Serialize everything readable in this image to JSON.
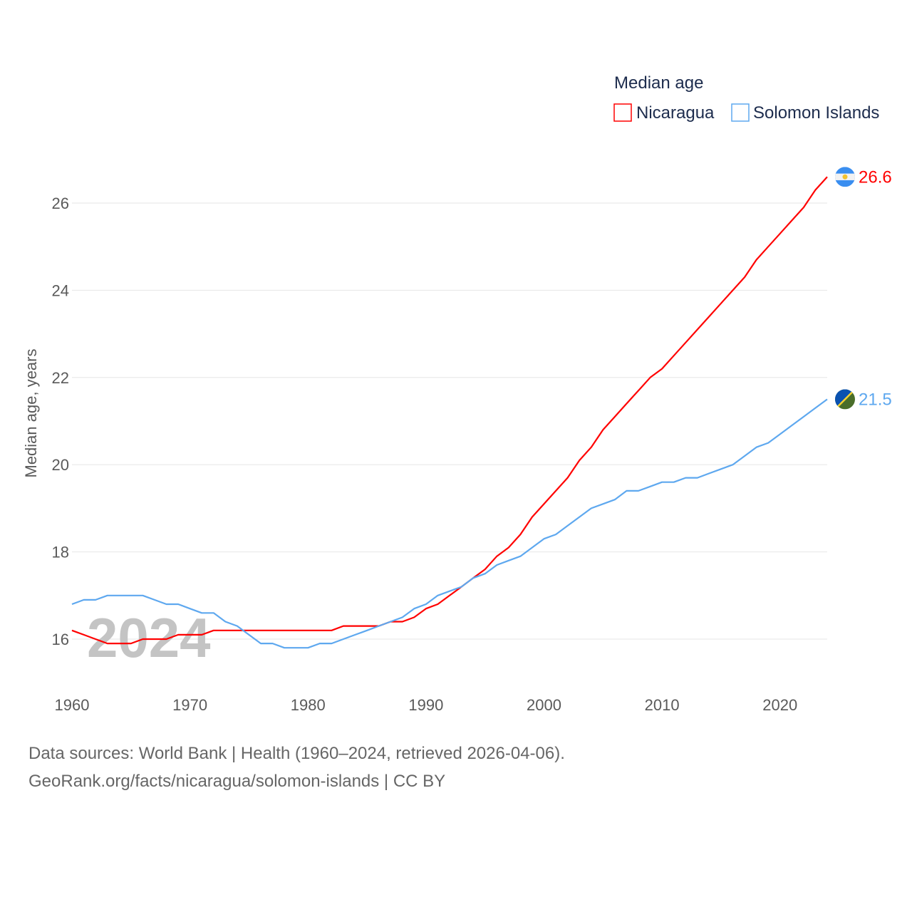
{
  "chart_data": {
    "type": "line",
    "title": "",
    "xlabel": "",
    "ylabel": "Median age, years",
    "xlim": [
      1960,
      2024
    ],
    "ylim": [
      15,
      26.8
    ],
    "yticks": [
      16,
      18,
      20,
      22,
      24,
      26
    ],
    "xticks": [
      1960,
      1970,
      1980,
      1990,
      2000,
      2010,
      2020
    ],
    "grid": true,
    "legend_title": "Median age",
    "legend_position": "top-right",
    "watermark_year": "2024",
    "x": [
      1960,
      1961,
      1962,
      1963,
      1964,
      1965,
      1966,
      1967,
      1968,
      1969,
      1970,
      1971,
      1972,
      1973,
      1974,
      1975,
      1976,
      1977,
      1978,
      1979,
      1980,
      1981,
      1982,
      1983,
      1984,
      1985,
      1986,
      1987,
      1988,
      1989,
      1990,
      1991,
      1992,
      1993,
      1994,
      1995,
      1996,
      1997,
      1998,
      1999,
      2000,
      2001,
      2002,
      2003,
      2004,
      2005,
      2006,
      2007,
      2008,
      2009,
      2010,
      2011,
      2012,
      2013,
      2014,
      2015,
      2016,
      2017,
      2018,
      2019,
      2020,
      2021,
      2022,
      2023,
      2024
    ],
    "series": [
      {
        "name": "Nicaragua",
        "color": "#ff0000",
        "end_label": "26.6",
        "values": [
          16.2,
          16.1,
          16.0,
          15.9,
          15.9,
          15.9,
          16.0,
          16.0,
          16.0,
          16.1,
          16.1,
          16.1,
          16.2,
          16.2,
          16.2,
          16.2,
          16.2,
          16.2,
          16.2,
          16.2,
          16.2,
          16.2,
          16.2,
          16.3,
          16.3,
          16.3,
          16.3,
          16.4,
          16.4,
          16.5,
          16.7,
          16.8,
          17.0,
          17.2,
          17.4,
          17.6,
          17.9,
          18.1,
          18.4,
          18.8,
          19.1,
          19.4,
          19.7,
          20.1,
          20.4,
          20.8,
          21.1,
          21.4,
          21.7,
          22.0,
          22.2,
          22.5,
          22.8,
          23.1,
          23.4,
          23.7,
          24.0,
          24.3,
          24.7,
          25.0,
          25.3,
          25.6,
          25.9,
          26.3,
          26.6
        ]
      },
      {
        "name": "Solomon Islands",
        "color": "#5ea8ef",
        "end_label": "21.5",
        "values": [
          16.8,
          16.9,
          16.9,
          17.0,
          17.0,
          17.0,
          17.0,
          16.9,
          16.8,
          16.8,
          16.7,
          16.6,
          16.6,
          16.4,
          16.3,
          16.1,
          15.9,
          15.9,
          15.8,
          15.8,
          15.8,
          15.9,
          15.9,
          16.0,
          16.1,
          16.2,
          16.3,
          16.4,
          16.5,
          16.7,
          16.8,
          17.0,
          17.1,
          17.2,
          17.4,
          17.5,
          17.7,
          17.8,
          17.9,
          18.1,
          18.3,
          18.4,
          18.6,
          18.8,
          19.0,
          19.1,
          19.2,
          19.4,
          19.4,
          19.5,
          19.6,
          19.6,
          19.7,
          19.7,
          19.8,
          19.9,
          20.0,
          20.2,
          20.4,
          20.5,
          20.7,
          20.9,
          21.1,
          21.3,
          21.5
        ]
      }
    ]
  },
  "footer": {
    "line1": "Data sources: World Bank | Health (1960–2024, retrieved 2026-04-06).",
    "line2": "GeoRank.org/facts/nicaragua/solomon-islands | CC BY"
  }
}
